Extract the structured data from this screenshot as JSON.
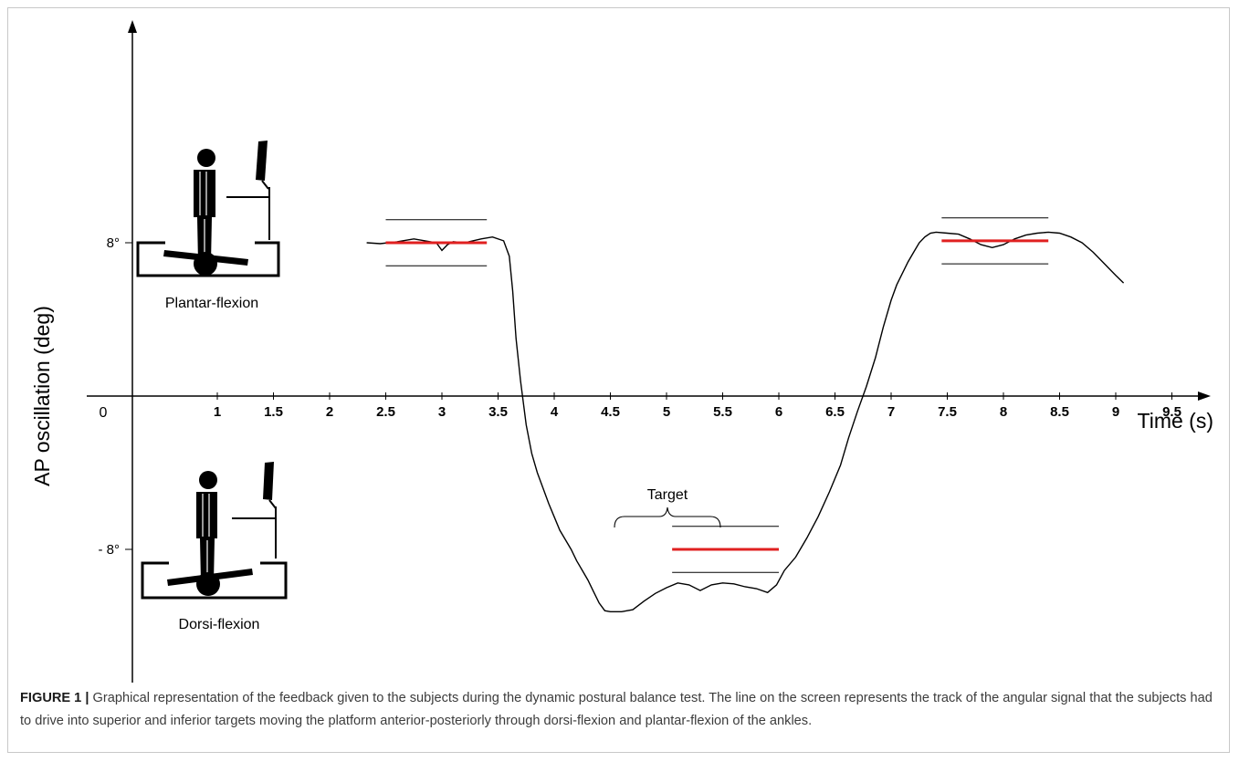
{
  "caption": {
    "label": "FIGURE 1",
    "separator": " | ",
    "text": "Graphical representation of the feedback given to the subjects during the dynamic postural balance test. The line on the screen represents the track of the angular signal that the subjects had to drive into superior and inferior targets moving the platform anterior-posteriorly through dorsi-flexion and plantar-flexion of the ankles."
  },
  "illustrations": {
    "top_label": "Plantar-flexion",
    "bottom_label": "Dorsi-flexion",
    "target_label": "Target"
  },
  "colors": {
    "axis": "#000000",
    "signal": "#000000",
    "target_center": "#e02020",
    "target_bounds": "#000000"
  },
  "chart_data": {
    "type": "line",
    "title": "",
    "xlabel": "Time (s)",
    "ylabel": "AP oscillation (deg)",
    "origin_label": "0",
    "x_ticks": [
      1,
      1.5,
      2,
      2.5,
      3,
      3.5,
      4,
      4.5,
      5,
      5.5,
      6,
      6.5,
      7,
      7.5,
      8,
      8.5,
      9,
      9.5
    ],
    "y_ticks": [
      {
        "value": 8,
        "label": "8°"
      },
      {
        "value": -8,
        "label": "- 8°"
      }
    ],
    "xlim": [
      0,
      10.3
    ],
    "ylim": [
      -15,
      20
    ],
    "grid": false,
    "targets": [
      {
        "x_start": 2.5,
        "x_end": 3.4,
        "center": 8,
        "upper": 9.2,
        "lower": 6.8
      },
      {
        "x_start": 5.05,
        "x_end": 6.0,
        "center": -8,
        "upper": -6.8,
        "lower": -9.2
      },
      {
        "x_start": 7.45,
        "x_end": 8.4,
        "center": 8.1,
        "upper": 9.3,
        "lower": 6.9
      }
    ],
    "series": [
      {
        "x": [
          2.33,
          2.45,
          2.6,
          2.75,
          2.85,
          2.95,
          3.0,
          3.05,
          3.1,
          3.2,
          3.35,
          3.45,
          3.55,
          3.6,
          3.63,
          3.66,
          3.7,
          3.75,
          3.8,
          3.85,
          3.9,
          3.95,
          4.0,
          4.05,
          4.1,
          4.15,
          4.2,
          4.25,
          4.3,
          4.35,
          4.4,
          4.45,
          4.5,
          4.6,
          4.7,
          4.8,
          4.9,
          5.0,
          5.1,
          5.2,
          5.3,
          5.4,
          5.5,
          5.6,
          5.7,
          5.8,
          5.9,
          5.98,
          6.05,
          6.15,
          6.25,
          6.35,
          6.45,
          6.55,
          6.62,
          6.7,
          6.78,
          6.86,
          6.93,
          7.0,
          7.05,
          7.1,
          7.15,
          7.2,
          7.25,
          7.3,
          7.35,
          7.4,
          7.5,
          7.6,
          7.7,
          7.8,
          7.9,
          8.0,
          8.1,
          8.2,
          8.3,
          8.4,
          8.5,
          8.6,
          8.7,
          8.8,
          8.9,
          9.0,
          9.07
        ],
        "y": [
          8.0,
          7.95,
          8.05,
          8.2,
          8.1,
          8.0,
          7.6,
          7.9,
          8.05,
          8.0,
          8.2,
          8.3,
          8.1,
          7.3,
          5.5,
          3.0,
          0.8,
          -1.5,
          -3.0,
          -4.0,
          -4.8,
          -5.6,
          -6.3,
          -7.0,
          -7.5,
          -8.0,
          -8.6,
          -9.1,
          -9.6,
          -10.2,
          -10.8,
          -11.2,
          -11.25,
          -11.25,
          -11.15,
          -10.7,
          -10.3,
          -10.0,
          -9.75,
          -9.85,
          -10.15,
          -9.85,
          -9.75,
          -9.8,
          -9.95,
          -10.05,
          -10.25,
          -9.85,
          -9.1,
          -8.4,
          -7.4,
          -6.3,
          -5.0,
          -3.6,
          -2.2,
          -0.8,
          0.5,
          2.0,
          3.6,
          5.0,
          5.8,
          6.4,
          7.0,
          7.5,
          8.0,
          8.3,
          8.5,
          8.55,
          8.5,
          8.45,
          8.2,
          7.9,
          7.75,
          7.9,
          8.2,
          8.4,
          8.5,
          8.55,
          8.5,
          8.3,
          8.0,
          7.5,
          6.9,
          6.3,
          5.9
        ]
      }
    ]
  }
}
